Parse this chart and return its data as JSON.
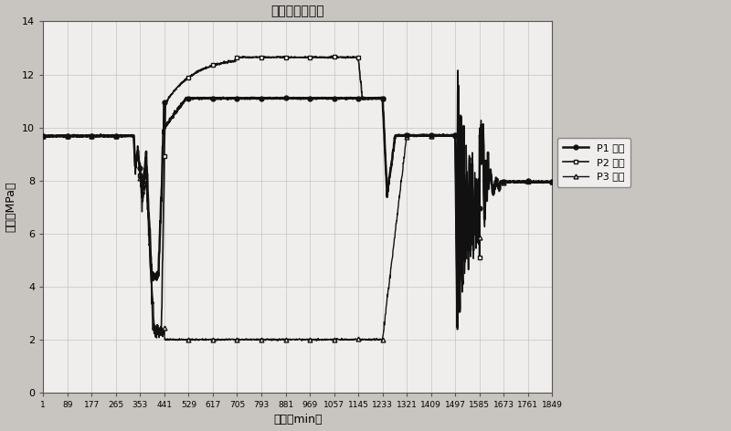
{
  "title": "三层静压叠加图",
  "xlabel": "时间（min）",
  "ylabel": "压力（MPa）",
  "xlim": [
    1,
    1849
  ],
  "ylim": [
    0,
    14
  ],
  "yticks": [
    0,
    2,
    4,
    6,
    8,
    10,
    12,
    14
  ],
  "xticks": [
    1,
    89,
    177,
    265,
    353,
    441,
    529,
    617,
    705,
    793,
    881,
    969,
    1057,
    1145,
    1233,
    1321,
    1409,
    1497,
    1585,
    1673,
    1761,
    1849
  ],
  "legend": [
    "P1 压力",
    "P2 压力",
    "P3 压力"
  ],
  "bg_color": "#c8c4c0",
  "plot_bg_color": "#f0eeec",
  "grid_color": "#aaaaaa",
  "line_color": "#111111"
}
